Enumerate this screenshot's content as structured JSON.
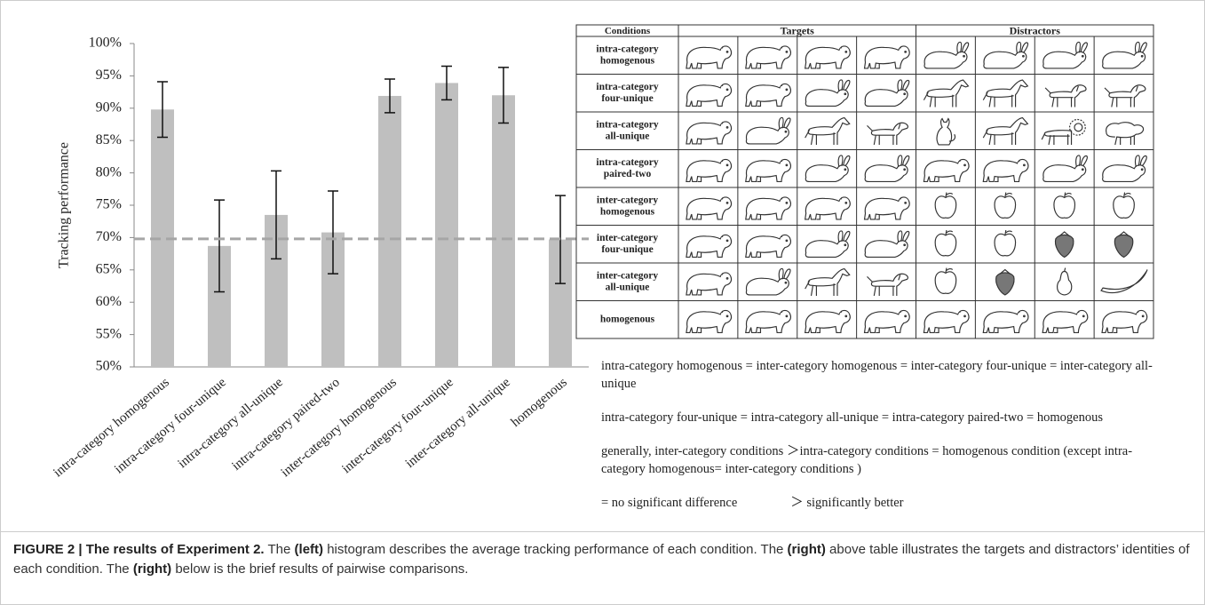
{
  "chart_data": {
    "type": "bar",
    "y_label": "Tracking performance",
    "categories": [
      "intra-category homogenous",
      "intra-category four-unique",
      "intra-category all-unique",
      "intra-category paired-two",
      "inter-category homogenous",
      "inter-category four-unique",
      "inter-category all-unique",
      "homogenous"
    ],
    "values": [
      89.8,
      68.7,
      73.5,
      70.8,
      91.9,
      93.9,
      92.0,
      69.7
    ],
    "errors": [
      4.3,
      7.1,
      6.8,
      6.4,
      2.6,
      2.6,
      4.3,
      6.8
    ],
    "reference_line": 69.8,
    "color": "#bfbfbf",
    "ylim": [
      50,
      100
    ],
    "yticks": [
      {
        "value": 50,
        "label": "50%"
      },
      {
        "value": 55,
        "label": "55%"
      },
      {
        "value": 60,
        "label": "60%"
      },
      {
        "value": 65,
        "label": "65%"
      },
      {
        "value": 70,
        "label": "70%"
      },
      {
        "value": 75,
        "label": "75%"
      },
      {
        "value": 80,
        "label": "80%"
      },
      {
        "value": 85,
        "label": "85%"
      },
      {
        "value": 90,
        "label": "90%"
      },
      {
        "value": 95,
        "label": "95%"
      },
      {
        "value": 100,
        "label": "100%"
      }
    ]
  },
  "table": {
    "headers": [
      "Conditions",
      "Targets",
      "Distractors"
    ],
    "conditions": [
      [
        "intra-category",
        "homogenous"
      ],
      [
        "intra-category",
        "four-unique"
      ],
      [
        "intra-category",
        "all-unique"
      ],
      [
        "intra-category",
        "paired-two"
      ],
      [
        "inter-category",
        "homogenous"
      ],
      [
        "inter-category",
        "four-unique"
      ],
      [
        "inter-category",
        "all-unique"
      ],
      [
        "homogenous"
      ]
    ]
  },
  "notes": [
    "intra-category homogenous = inter-category homogenous = inter-category four-unique = inter-category all-unique",
    "intra-category four-unique = intra-category all-unique = intra-category paired-two = homogenous",
    "generally, inter-category conditions ＞intra-category conditions = homogenous condition (except intra-category homogenous= inter-category conditions )"
  ],
  "legend": [
    "=  no significant difference",
    "＞ significantly better"
  ],
  "caption": [
    {
      "text": "FIGURE 2 | The results of Experiment 2.",
      "bold": true
    },
    {
      "text": " The ",
      "bold": false
    },
    {
      "text": "(left)",
      "bold": true
    },
    {
      "text": " histogram describes the average tracking performance of each condition. The ",
      "bold": false
    },
    {
      "text": "(right)",
      "bold": true
    },
    {
      "text": " above table illustrates the targets and distractors’ identities of each condition. The ",
      "bold": false
    },
    {
      "text": "(right)",
      "bold": true
    },
    {
      "text": " below is the brief results of pairwise comparisons.",
      "bold": false
    }
  ]
}
